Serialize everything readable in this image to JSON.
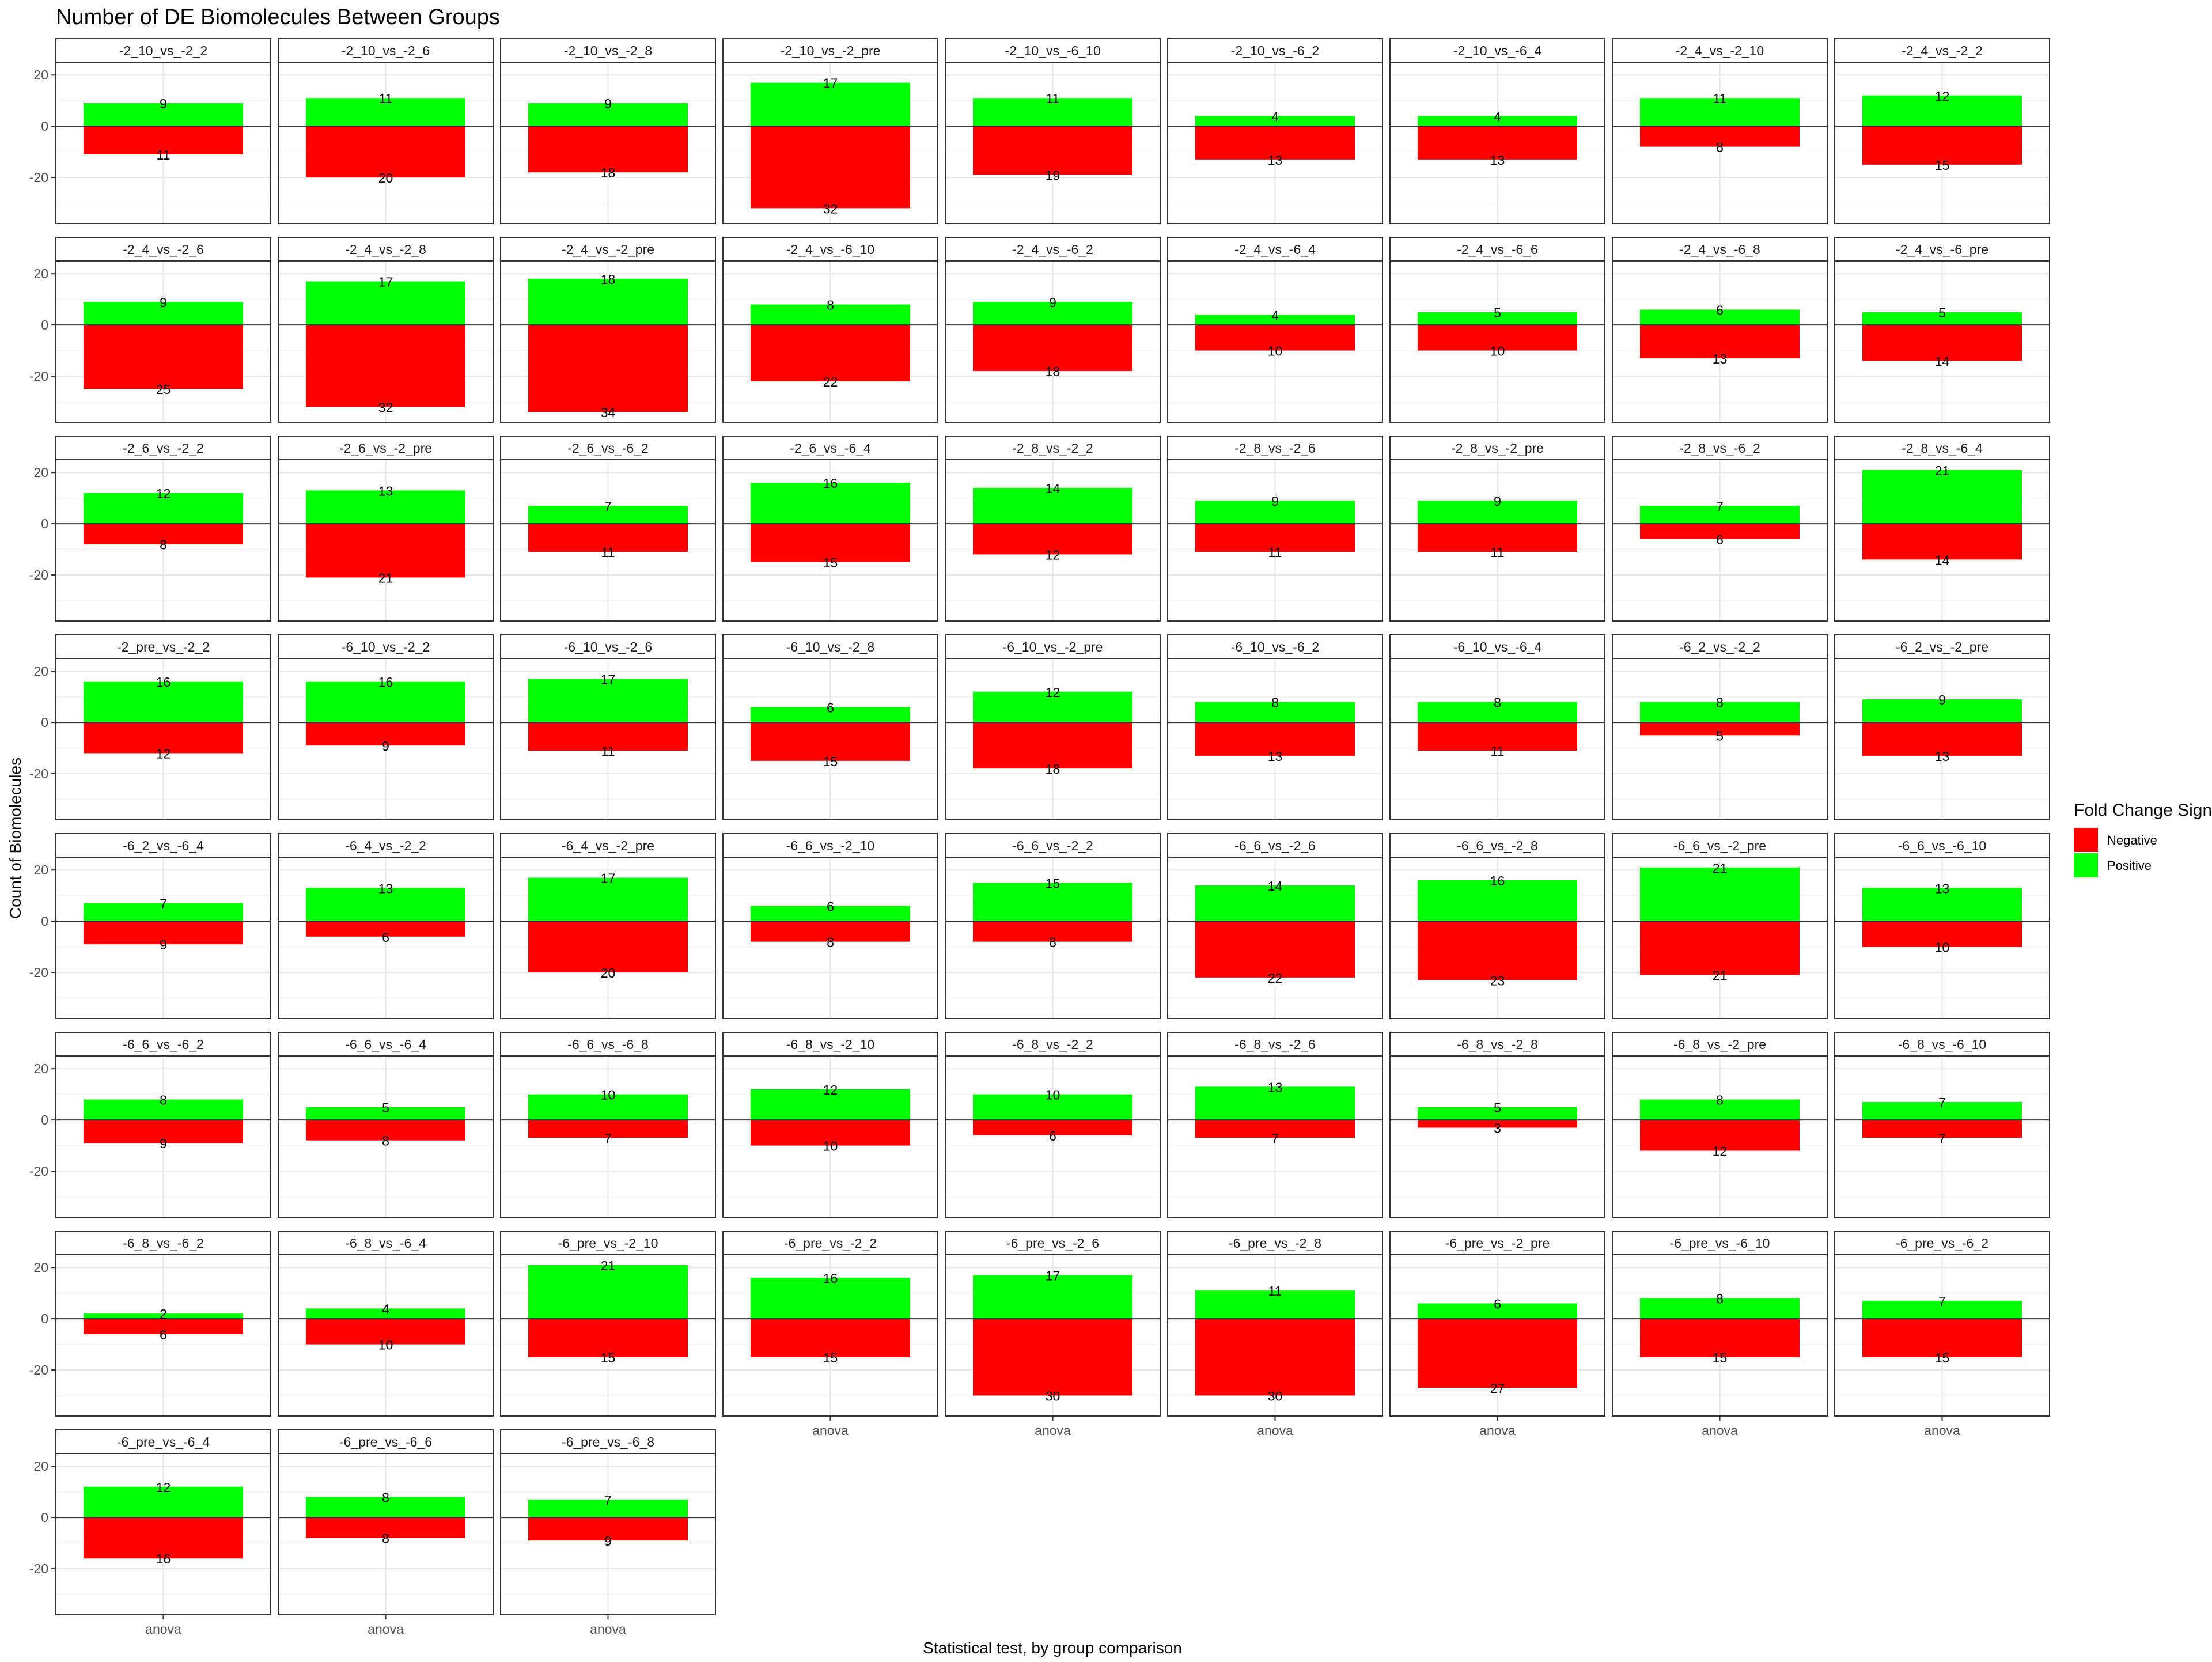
{
  "chart_data": {
    "type": "bar",
    "title": "Number of DE Biomolecules Between Groups",
    "xlabel": "Statistical test, by group comparison",
    "ylabel": "Count of Biomolecules",
    "x_category": "anova",
    "ylim": [
      -38,
      25
    ],
    "y_ticks": [
      -20,
      0,
      20
    ],
    "grid": true,
    "legend": {
      "title": "Fold Change Sign",
      "position": "right",
      "entries": [
        {
          "name": "Negative",
          "color": "#ff0000"
        },
        {
          "name": "Positive",
          "color": "#00ff00"
        }
      ]
    },
    "colors": {
      "negative": "#ff0000",
      "positive": "#00ff00"
    },
    "facets": [
      {
        "label": "-2_10_vs_-2_2",
        "positive": 9,
        "negative": 11
      },
      {
        "label": "-2_10_vs_-2_6",
        "positive": 11,
        "negative": 20
      },
      {
        "label": "-2_10_vs_-2_8",
        "positive": 9,
        "negative": 18
      },
      {
        "label": "-2_10_vs_-2_pre",
        "positive": 17,
        "negative": 32
      },
      {
        "label": "-2_10_vs_-6_10",
        "positive": 11,
        "negative": 19
      },
      {
        "label": "-2_10_vs_-6_2",
        "positive": 4,
        "negative": 13
      },
      {
        "label": "-2_10_vs_-6_4",
        "positive": 4,
        "negative": 13
      },
      {
        "label": "-2_4_vs_-2_10",
        "positive": 11,
        "negative": 8
      },
      {
        "label": "-2_4_vs_-2_2",
        "positive": 12,
        "negative": 15
      },
      {
        "label": "-2_4_vs_-2_6",
        "positive": 9,
        "negative": 25
      },
      {
        "label": "-2_4_vs_-2_8",
        "positive": 17,
        "negative": 32
      },
      {
        "label": "-2_4_vs_-2_pre",
        "positive": 18,
        "negative": 34
      },
      {
        "label": "-2_4_vs_-6_10",
        "positive": 8,
        "negative": 22
      },
      {
        "label": "-2_4_vs_-6_2",
        "positive": 9,
        "negative": 18
      },
      {
        "label": "-2_4_vs_-6_4",
        "positive": 4,
        "negative": 10
      },
      {
        "label": "-2_4_vs_-6_6",
        "positive": 5,
        "negative": 10
      },
      {
        "label": "-2_4_vs_-6_8",
        "positive": 6,
        "negative": 13
      },
      {
        "label": "-2_4_vs_-6_pre",
        "positive": 5,
        "negative": 14
      },
      {
        "label": "-2_6_vs_-2_2",
        "positive": 12,
        "negative": 8
      },
      {
        "label": "-2_6_vs_-2_pre",
        "positive": 13,
        "negative": 21
      },
      {
        "label": "-2_6_vs_-6_2",
        "positive": 7,
        "negative": 11
      },
      {
        "label": "-2_6_vs_-6_4",
        "positive": 16,
        "negative": 15
      },
      {
        "label": "-2_8_vs_-2_2",
        "positive": 14,
        "negative": 12
      },
      {
        "label": "-2_8_vs_-2_6",
        "positive": 9,
        "negative": 11
      },
      {
        "label": "-2_8_vs_-2_pre",
        "positive": 9,
        "negative": 11
      },
      {
        "label": "-2_8_vs_-6_2",
        "positive": 7,
        "negative": 6
      },
      {
        "label": "-2_8_vs_-6_4",
        "positive": 21,
        "negative": 14
      },
      {
        "label": "-2_pre_vs_-2_2",
        "positive": 16,
        "negative": 12
      },
      {
        "label": "-6_10_vs_-2_2",
        "positive": 16,
        "negative": 9
      },
      {
        "label": "-6_10_vs_-2_6",
        "positive": 17,
        "negative": 11
      },
      {
        "label": "-6_10_vs_-2_8",
        "positive": 6,
        "negative": 15
      },
      {
        "label": "-6_10_vs_-2_pre",
        "positive": 12,
        "negative": 18
      },
      {
        "label": "-6_10_vs_-6_2",
        "positive": 8,
        "negative": 13
      },
      {
        "label": "-6_10_vs_-6_4",
        "positive": 8,
        "negative": 11
      },
      {
        "label": "-6_2_vs_-2_2",
        "positive": 8,
        "negative": 5
      },
      {
        "label": "-6_2_vs_-2_pre",
        "positive": 9,
        "negative": 13
      },
      {
        "label": "-6_2_vs_-6_4",
        "positive": 7,
        "negative": 9
      },
      {
        "label": "-6_4_vs_-2_2",
        "positive": 13,
        "negative": 6
      },
      {
        "label": "-6_4_vs_-2_pre",
        "positive": 17,
        "negative": 20
      },
      {
        "label": "-6_6_vs_-2_10",
        "positive": 6,
        "negative": 8
      },
      {
        "label": "-6_6_vs_-2_2",
        "positive": 15,
        "negative": 8
      },
      {
        "label": "-6_6_vs_-2_6",
        "positive": 14,
        "negative": 22
      },
      {
        "label": "-6_6_vs_-2_8",
        "positive": 16,
        "negative": 23
      },
      {
        "label": "-6_6_vs_-2_pre",
        "positive": 21,
        "negative": 21
      },
      {
        "label": "-6_6_vs_-6_10",
        "positive": 13,
        "negative": 10
      },
      {
        "label": "-6_6_vs_-6_2",
        "positive": 8,
        "negative": 9
      },
      {
        "label": "-6_6_vs_-6_4",
        "positive": 5,
        "negative": 8
      },
      {
        "label": "-6_6_vs_-6_8",
        "positive": 10,
        "negative": 7
      },
      {
        "label": "-6_8_vs_-2_10",
        "positive": 12,
        "negative": 10
      },
      {
        "label": "-6_8_vs_-2_2",
        "positive": 10,
        "negative": 6
      },
      {
        "label": "-6_8_vs_-2_6",
        "positive": 13,
        "negative": 7
      },
      {
        "label": "-6_8_vs_-2_8",
        "positive": 5,
        "negative": 3
      },
      {
        "label": "-6_8_vs_-2_pre",
        "positive": 8,
        "negative": 12
      },
      {
        "label": "-6_8_vs_-6_10",
        "positive": 7,
        "negative": 7
      },
      {
        "label": "-6_8_vs_-6_2",
        "positive": 2,
        "negative": 6
      },
      {
        "label": "-6_8_vs_-6_4",
        "positive": 4,
        "negative": 10
      },
      {
        "label": "-6_pre_vs_-2_10",
        "positive": 21,
        "negative": 15
      },
      {
        "label": "-6_pre_vs_-2_2",
        "positive": 16,
        "negative": 15
      },
      {
        "label": "-6_pre_vs_-2_6",
        "positive": 17,
        "negative": 30
      },
      {
        "label": "-6_pre_vs_-2_8",
        "positive": 11,
        "negative": 30
      },
      {
        "label": "-6_pre_vs_-2_pre",
        "positive": 6,
        "negative": 27
      },
      {
        "label": "-6_pre_vs_-6_10",
        "positive": 8,
        "negative": 15
      },
      {
        "label": "-6_pre_vs_-6_2",
        "positive": 7,
        "negative": 15
      },
      {
        "label": "-6_pre_vs_-6_4",
        "positive": 12,
        "negative": 16
      },
      {
        "label": "-6_pre_vs_-6_6",
        "positive": 8,
        "negative": 8
      },
      {
        "label": "-6_pre_vs_-6_8",
        "positive": 7,
        "negative": 9
      }
    ]
  }
}
